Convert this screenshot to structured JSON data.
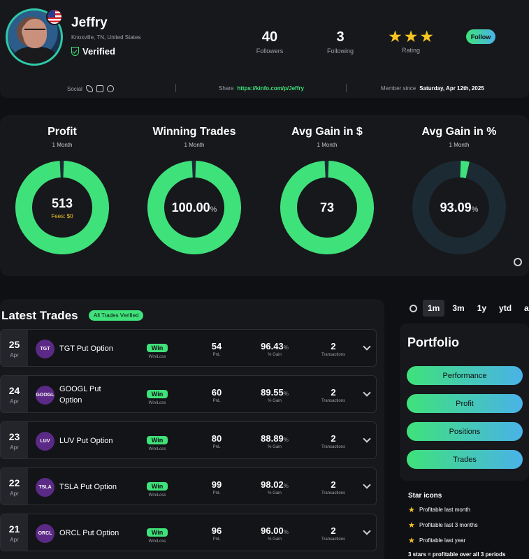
{
  "profile": {
    "name": "Jeffry",
    "location": "Knoxville, TN, United States",
    "verified_label": "Verified",
    "followers_count": "40",
    "followers_label": "Followers",
    "following_count": "3",
    "following_label": "Following",
    "rating_label": "Rating",
    "rating_stars": 3,
    "follow_label": "Follow",
    "social_label": "Social",
    "share_label": "Share",
    "share_url": "https://kinfo.com/p/Jeffry",
    "member_since_label": "Member since",
    "member_since_date": "Saturday, Apr 12th, 2025"
  },
  "metrics": [
    {
      "title": "Profit",
      "period": "1 Month",
      "value": "513",
      "unit": "",
      "fees": "Fees: $0",
      "fill": 0.985,
      "color": "#3fe27a"
    },
    {
      "title": "Winning Trades",
      "period": "1 Month",
      "value": "100.00",
      "unit": "%",
      "fees": "",
      "fill": 0.985,
      "color": "#3fe27a"
    },
    {
      "title": "Avg Gain in $",
      "period": "1 Month",
      "value": "73",
      "unit": "",
      "fees": "",
      "fill": 0.985,
      "color": "#3fe27a"
    },
    {
      "title": "Avg Gain in %",
      "period": "1 Month",
      "value": "93.09",
      "unit": "%",
      "fees": "",
      "fill": 0.03,
      "color": "#3fe27a"
    }
  ],
  "trades": {
    "title": "Latest Trades",
    "badge": "All Trades Verified",
    "winloss_label": "Win/Loss",
    "pnl_label": "PnL",
    "gain_label": "% Gain",
    "transactions_label": "Transactions",
    "rows": [
      {
        "day": "25",
        "month": "Apr",
        "ticker": "TGT",
        "name": "TGT Put Option",
        "result": "Win",
        "pnl": "54",
        "gain": "96.43",
        "gain_unit": "%",
        "transactions": "2"
      },
      {
        "day": "24",
        "month": "Apr",
        "ticker": "GOOGL",
        "name": "GOOGL Put Option",
        "result": "Win",
        "pnl": "60",
        "gain": "89.55",
        "gain_unit": "%",
        "transactions": "2"
      },
      {
        "day": "23",
        "month": "Apr",
        "ticker": "LUV",
        "name": "LUV Put Option",
        "result": "Win",
        "pnl": "80",
        "gain": "88.89",
        "gain_unit": "%",
        "transactions": "2"
      },
      {
        "day": "22",
        "month": "Apr",
        "ticker": "TSLA",
        "name": "TSLA Put Option",
        "result": "Win",
        "pnl": "99",
        "gain": "98.02",
        "gain_unit": "%",
        "transactions": "2"
      },
      {
        "day": "21",
        "month": "Apr",
        "ticker": "ORCL",
        "name": "ORCL Put Option",
        "result": "Win",
        "pnl": "96",
        "gain": "96.00",
        "gain_unit": "%",
        "transactions": "2"
      }
    ]
  },
  "tabs": [
    {
      "label": "1m",
      "active": true
    },
    {
      "label": "3m",
      "active": false
    },
    {
      "label": "1y",
      "active": false
    },
    {
      "label": "ytd",
      "active": false
    },
    {
      "label": "at",
      "active": false
    }
  ],
  "portfolio": {
    "title": "Portfolio",
    "buttons": [
      "Performance",
      "Profit",
      "Positions",
      "Trades"
    ]
  },
  "star_icons": {
    "title": "Star icons",
    "items": [
      "Profitable last month",
      "Profitable last 3 months",
      "Profitable last year"
    ],
    "footer": "3 stars = profitable over all 3 periods"
  },
  "colors": {
    "accent": "#3fe27a",
    "accent2": "#4ab2e8",
    "star": "#f3c623",
    "ring_track": "#1c2a33",
    "ticker_bg": "#5b2a86"
  }
}
